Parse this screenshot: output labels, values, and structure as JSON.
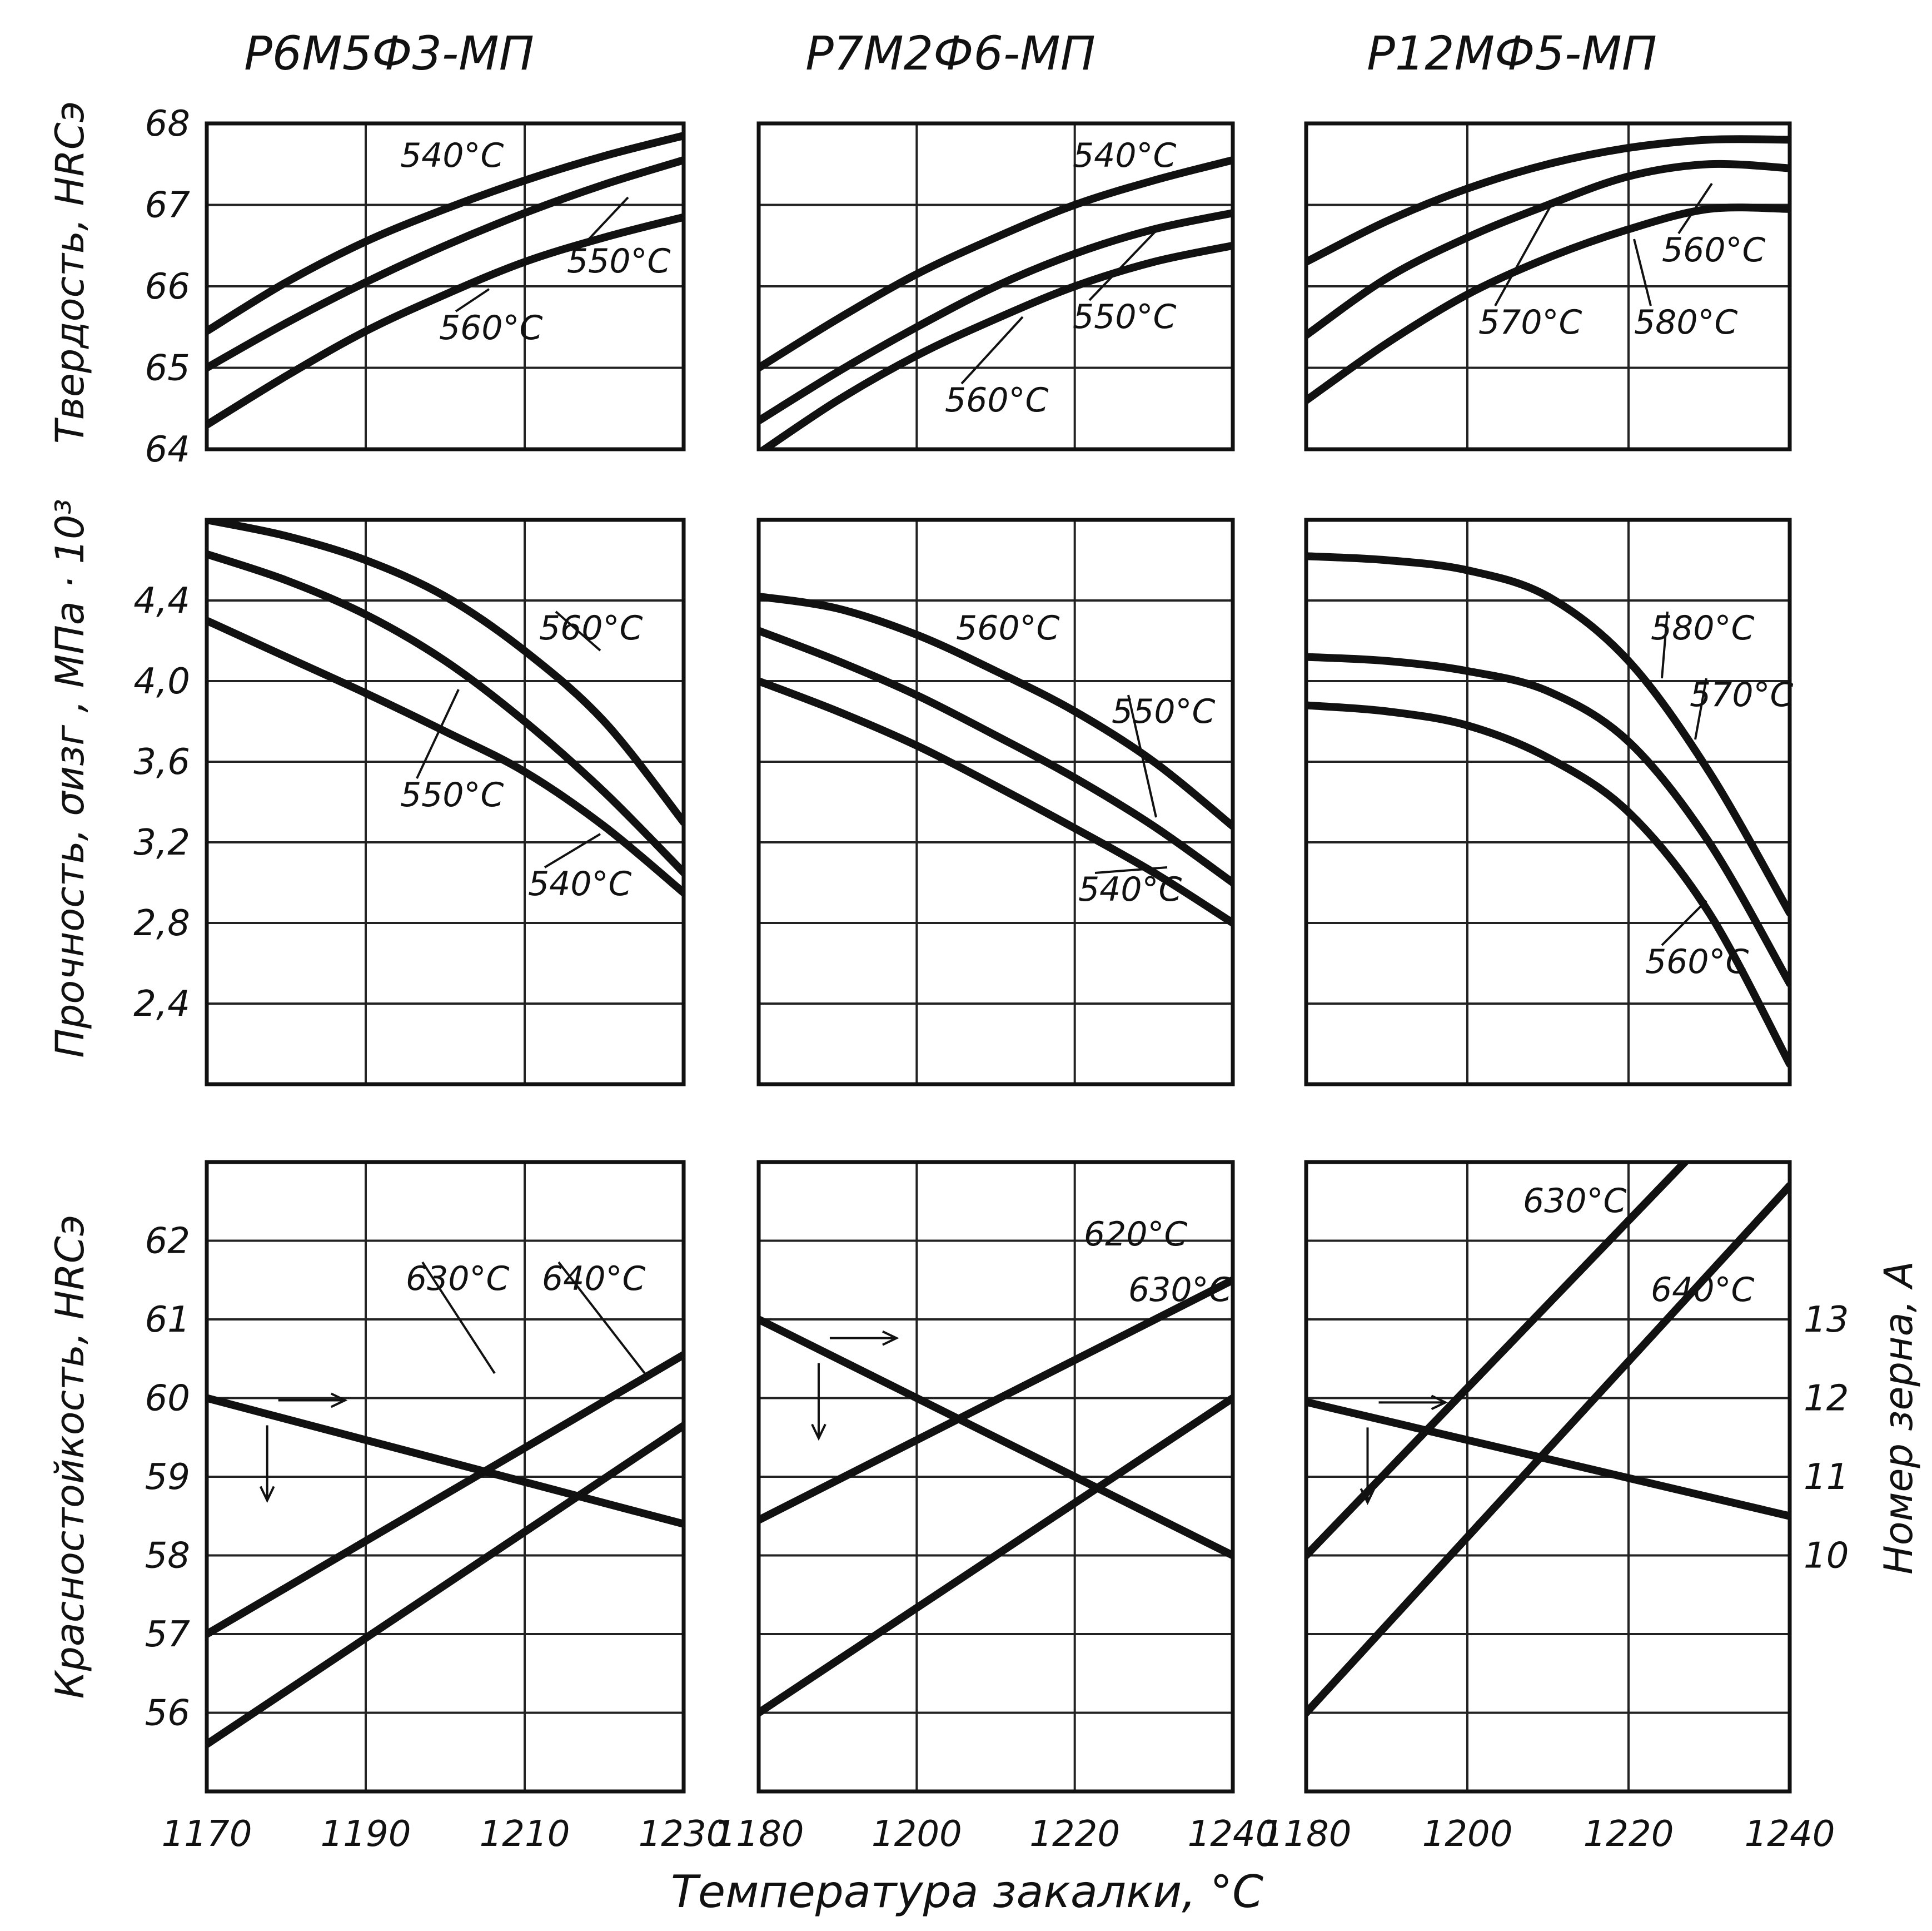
{
  "columns": [
    {
      "title": "Р6М5Ф3-МП"
    },
    {
      "title": "Р7М2Ф6-МП"
    },
    {
      "title": "Р12МФ5-МП"
    }
  ],
  "y_axis_titles": {
    "hardness": "Твердость, HRCэ",
    "strength": "Прочность, σизг , МПа · 10³",
    "red_hardness": "Красностойкость, HRCэ",
    "grain": "Номер зерна, А"
  },
  "x_axis_title": "Температура закалки, °С",
  "chart_data": [
    {
      "type": "line",
      "panel": "hardness-1",
      "column": 0,
      "x_ticks": [
        "1170",
        "1190",
        "1210",
        "1230"
      ],
      "y_ticks": [
        "68",
        "67",
        "66",
        "65",
        "64"
      ],
      "xlim": [
        1170,
        1230
      ],
      "ylim": [
        64,
        68
      ],
      "series": [
        {
          "name": "540°С",
          "x": [
            1170,
            1180,
            1190,
            1200,
            1210,
            1220,
            1230
          ],
          "y": [
            65.45,
            66.05,
            66.55,
            66.95,
            67.3,
            67.6,
            67.85
          ]
        },
        {
          "name": "550°С",
          "x": [
            1170,
            1180,
            1190,
            1200,
            1210,
            1220,
            1230
          ],
          "y": [
            65.0,
            65.55,
            66.05,
            66.5,
            66.9,
            67.25,
            67.55
          ]
        },
        {
          "name": "560°С",
          "x": [
            1170,
            1180,
            1190,
            1200,
            1210,
            1220,
            1230
          ],
          "y": [
            64.3,
            64.9,
            65.45,
            65.9,
            66.3,
            66.6,
            66.85
          ]
        }
      ]
    },
    {
      "type": "line",
      "panel": "hardness-2",
      "column": 1,
      "x_ticks": [
        "1180",
        "1200",
        "1220",
        "1240"
      ],
      "y_ticks": [],
      "xlim": [
        1180,
        1240
      ],
      "ylim": [
        64,
        68
      ],
      "series": [
        {
          "name": "540°С",
          "x": [
            1180,
            1190,
            1200,
            1210,
            1220,
            1230,
            1240
          ],
          "y": [
            65.0,
            65.6,
            66.15,
            66.6,
            67.0,
            67.3,
            67.55
          ]
        },
        {
          "name": "550°С",
          "x": [
            1180,
            1190,
            1200,
            1210,
            1220,
            1230,
            1240
          ],
          "y": [
            64.35,
            64.95,
            65.5,
            66.0,
            66.4,
            66.7,
            66.9
          ]
        },
        {
          "name": "560°С",
          "x": [
            1180,
            1190,
            1200,
            1210,
            1220,
            1230,
            1240
          ],
          "y": [
            63.95,
            64.6,
            65.15,
            65.6,
            66.0,
            66.3,
            66.5
          ]
        }
      ]
    },
    {
      "type": "line",
      "panel": "hardness-3",
      "column": 2,
      "x_ticks": [
        "1180",
        "1200",
        "1220",
        "1240"
      ],
      "y_ticks": [],
      "xlim": [
        1180,
        1240
      ],
      "ylim": [
        64,
        68
      ],
      "series": [
        {
          "name": "560°С",
          "x": [
            1180,
            1190,
            1200,
            1210,
            1220,
            1230,
            1240
          ],
          "y": [
            66.3,
            66.8,
            67.2,
            67.5,
            67.7,
            67.8,
            67.8
          ]
        },
        {
          "name": "570°С",
          "x": [
            1180,
            1190,
            1200,
            1210,
            1220,
            1230,
            1240
          ],
          "y": [
            65.4,
            66.1,
            66.6,
            67.0,
            67.35,
            67.5,
            67.45
          ]
        },
        {
          "name": "580°С",
          "x": [
            1180,
            1190,
            1200,
            1210,
            1220,
            1230,
            1240
          ],
          "y": [
            64.6,
            65.3,
            65.9,
            66.35,
            66.7,
            66.95,
            66.95
          ]
        }
      ]
    },
    {
      "type": "line",
      "panel": "strength-1",
      "column": 0,
      "x_ticks": [
        "1170",
        "1190",
        "1210",
        "1230"
      ],
      "y_ticks": [
        "4,4",
        "4,0",
        "3,6",
        "3,2",
        "2,8",
        "2,4"
      ],
      "xlim": [
        1170,
        1230
      ],
      "ylim": [
        2.0,
        4.8
      ],
      "series": [
        {
          "name": "560°С",
          "x": [
            1170,
            1180,
            1190,
            1200,
            1210,
            1220,
            1230
          ],
          "y": [
            4.8,
            4.72,
            4.6,
            4.42,
            4.15,
            3.8,
            3.3
          ]
        },
        {
          "name": "550°С",
          "x": [
            1170,
            1180,
            1190,
            1200,
            1210,
            1220,
            1230
          ],
          "y": [
            4.63,
            4.5,
            4.33,
            4.1,
            3.8,
            3.45,
            3.05
          ]
        },
        {
          "name": "540°С",
          "x": [
            1170,
            1180,
            1190,
            1200,
            1210,
            1220,
            1230
          ],
          "y": [
            4.3,
            4.12,
            3.94,
            3.75,
            3.55,
            3.28,
            2.95
          ]
        }
      ]
    },
    {
      "type": "line",
      "panel": "strength-2",
      "column": 1,
      "x_ticks": [
        "1180",
        "1200",
        "1220",
        "1240"
      ],
      "y_ticks": [],
      "xlim": [
        1180,
        1240
      ],
      "ylim": [
        2.0,
        4.8
      ],
      "series": [
        {
          "name": "560°С",
          "x": [
            1180,
            1190,
            1200,
            1210,
            1220,
            1230,
            1240
          ],
          "y": [
            4.42,
            4.36,
            4.23,
            4.05,
            3.85,
            3.6,
            3.28
          ]
        },
        {
          "name": "550°С",
          "x": [
            1180,
            1190,
            1200,
            1210,
            1220,
            1230,
            1240
          ],
          "y": [
            4.25,
            4.1,
            3.93,
            3.73,
            3.52,
            3.28,
            3.0
          ]
        },
        {
          "name": "540°С",
          "x": [
            1180,
            1190,
            1200,
            1210,
            1220,
            1230,
            1240
          ],
          "y": [
            4.0,
            3.85,
            3.68,
            3.48,
            3.27,
            3.05,
            2.8
          ]
        }
      ]
    },
    {
      "type": "line",
      "panel": "strength-3",
      "column": 2,
      "x_ticks": [
        "1180",
        "1200",
        "1220",
        "1240"
      ],
      "y_ticks": [],
      "xlim": [
        1180,
        1240
      ],
      "ylim": [
        2.0,
        4.8
      ],
      "series": [
        {
          "name": "580°С",
          "x": [
            1180,
            1190,
            1200,
            1210,
            1220,
            1230,
            1240
          ],
          "y": [
            4.62,
            4.6,
            4.55,
            4.42,
            4.1,
            3.55,
            2.85
          ]
        },
        {
          "name": "570°С",
          "x": [
            1180,
            1190,
            1200,
            1210,
            1220,
            1230,
            1240
          ],
          "y": [
            4.12,
            4.1,
            4.05,
            3.95,
            3.7,
            3.2,
            2.5
          ]
        },
        {
          "name": "560°С",
          "x": [
            1180,
            1190,
            1200,
            1210,
            1220,
            1230,
            1240
          ],
          "y": [
            3.88,
            3.85,
            3.78,
            3.62,
            3.35,
            2.85,
            2.1
          ]
        }
      ]
    },
    {
      "type": "line",
      "panel": "red-hardness-1",
      "column": 0,
      "x_ticks": [
        "1170",
        "1190",
        "1210",
        "1230"
      ],
      "y_ticks": [
        "62",
        "61",
        "60",
        "59",
        "58",
        "57",
        "56"
      ],
      "xlim": [
        1170,
        1230
      ],
      "ylim": [
        55,
        63
      ],
      "series": [
        {
          "name": "630°С",
          "x": [
            1170,
            1230
          ],
          "y": [
            57.0,
            60.55
          ]
        },
        {
          "name": "640°С",
          "x": [
            1170,
            1230
          ],
          "y": [
            55.6,
            59.65
          ]
        },
        {
          "name": "",
          "x": [
            1170,
            1230
          ],
          "y": [
            60.0,
            58.4
          ]
        }
      ]
    },
    {
      "type": "line",
      "panel": "red-hardness-2",
      "column": 1,
      "x_ticks": [
        "1180",
        "1200",
        "1220",
        "1240"
      ],
      "y_ticks": [],
      "xlim": [
        1180,
        1240
      ],
      "ylim": [
        55,
        63
      ],
      "series": [
        {
          "name": "620°С",
          "x": [
            1180,
            1240
          ],
          "y": [
            58.45,
            61.5
          ]
        },
        {
          "name": "630°С",
          "x": [
            1180,
            1240
          ],
          "y": [
            56.0,
            60.0
          ]
        },
        {
          "name": "",
          "x": [
            1180,
            1240
          ],
          "y": [
            61.0,
            58.0
          ]
        }
      ]
    },
    {
      "type": "line",
      "panel": "red-hardness-3",
      "column": 2,
      "x_ticks": [
        "1180",
        "1200",
        "1220",
        "1240"
      ],
      "y_ticks": [],
      "y2_ticks": [
        "13",
        "12",
        "11",
        "10"
      ],
      "xlim": [
        1180,
        1240
      ],
      "ylim": [
        55,
        63
      ],
      "series": [
        {
          "name": "630°С",
          "x": [
            1180,
            1227
          ],
          "y": [
            58.0,
            63.0
          ]
        },
        {
          "name": "640°С",
          "x": [
            1180,
            1240
          ],
          "y": [
            56.0,
            62.7
          ]
        },
        {
          "name": "",
          "x": [
            1180,
            1240
          ],
          "y": [
            59.95,
            58.5
          ]
        }
      ]
    }
  ]
}
